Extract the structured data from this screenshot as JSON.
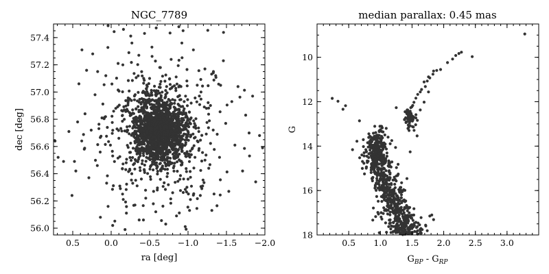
{
  "chart_data": [
    {
      "type": "scatter",
      "title": "NGC_7789",
      "xlabel": "ra [deg]",
      "ylabel": "dec [deg]",
      "xlim": [
        0.75,
        -2.0
      ],
      "ylim": [
        55.95,
        57.5
      ],
      "xticks": [
        0.5,
        0.0,
        -0.5,
        -1.0,
        -1.5,
        -2.0
      ],
      "xtick_labels": [
        "0.5",
        "0.0",
        "−0.5",
        "−1.0",
        "−1.5",
        "−2.0"
      ],
      "yticks": [
        56.0,
        56.2,
        56.4,
        56.6,
        56.8,
        57.0,
        57.2,
        57.4
      ],
      "ytick_labels": [
        "56.0",
        "56.2",
        "56.4",
        "56.6",
        "56.8",
        "57.0",
        "57.2",
        "57.4"
      ],
      "grid": false,
      "color": "#333333",
      "points": [
        {
          "x": 0.73,
          "y": 56.64
        },
        {
          "x": 0.69,
          "y": 56.52
        },
        {
          "x": 0.62,
          "y": 56.49
        },
        {
          "x": 0.55,
          "y": 56.71
        },
        {
          "x": 0.51,
          "y": 56.24
        },
        {
          "x": 0.46,
          "y": 56.42
        },
        {
          "x": 0.42,
          "y": 57.06
        },
        {
          "x": 0.38,
          "y": 57.31
        },
        {
          "x": 0.35,
          "y": 56.58
        },
        {
          "x": 0.34,
          "y": 56.84
        },
        {
          "x": 0.32,
          "y": 57.16
        },
        {
          "x": 0.29,
          "y": 56.37
        },
        {
          "x": 0.26,
          "y": 56.72
        },
        {
          "x": 0.24,
          "y": 57.28
        },
        {
          "x": 0.21,
          "y": 56.98
        },
        {
          "x": 0.18,
          "y": 56.46
        },
        {
          "x": 0.14,
          "y": 56.08
        },
        {
          "x": 0.12,
          "y": 56.81
        },
        {
          "x": 0.07,
          "y": 57.12
        },
        {
          "x": 0.04,
          "y": 56.16
        },
        {
          "x": 0.01,
          "y": 56.61
        },
        {
          "x": -0.02,
          "y": 56.02
        },
        {
          "x": -0.06,
          "y": 56.88
        },
        {
          "x": -0.09,
          "y": 57.21
        },
        {
          "x": -0.12,
          "y": 56.29
        },
        {
          "x": -0.16,
          "y": 57.46
        },
        {
          "x": -0.18,
          "y": 55.99
        },
        {
          "x": -0.22,
          "y": 56.92
        },
        {
          "x": -0.27,
          "y": 57.36
        },
        {
          "x": -0.31,
          "y": 56.17
        },
        {
          "x": -0.36,
          "y": 57.27
        },
        {
          "x": -0.42,
          "y": 56.06
        },
        {
          "x": -0.47,
          "y": 57.04
        },
        {
          "x": -0.53,
          "y": 57.33
        },
        {
          "x": -0.58,
          "y": 56.12
        },
        {
          "x": -0.64,
          "y": 57.18
        },
        {
          "x": -0.71,
          "y": 56.03
        },
        {
          "x": -0.78,
          "y": 57.24
        },
        {
          "x": -0.85,
          "y": 56.09
        },
        {
          "x": -0.88,
          "y": 57.48
        },
        {
          "x": -0.92,
          "y": 57.36
        },
        {
          "x": -1.02,
          "y": 56.13
        },
        {
          "x": -1.07,
          "y": 57.31
        },
        {
          "x": -1.12,
          "y": 57.05
        },
        {
          "x": -1.16,
          "y": 56.24
        },
        {
          "x": -1.22,
          "y": 57.17
        },
        {
          "x": -1.27,
          "y": 56.44
        },
        {
          "x": -1.31,
          "y": 56.13
        },
        {
          "x": -1.36,
          "y": 57.12
        },
        {
          "x": -1.41,
          "y": 56.52
        },
        {
          "x": -1.46,
          "y": 57.23
        },
        {
          "x": -1.49,
          "y": 56.77
        },
        {
          "x": -1.53,
          "y": 56.27
        },
        {
          "x": -1.57,
          "y": 56.93
        },
        {
          "x": -1.61,
          "y": 56.61
        },
        {
          "x": -1.65,
          "y": 57.04
        },
        {
          "x": -1.71,
          "y": 56.42
        },
        {
          "x": -1.75,
          "y": 56.83
        },
        {
          "x": -1.8,
          "y": 56.53
        },
        {
          "x": -1.84,
          "y": 56.97
        },
        {
          "x": -1.88,
          "y": 56.34
        },
        {
          "x": -1.93,
          "y": 56.68
        },
        {
          "x": -1.97,
          "y": 56.59
        },
        {
          "x": 0.05,
          "y": 56.74
        },
        {
          "x": -0.02,
          "y": 56.53
        },
        {
          "x": -0.1,
          "y": 56.66
        },
        {
          "x": -0.15,
          "y": 56.86
        },
        {
          "x": -0.19,
          "y": 56.43
        },
        {
          "x": -0.24,
          "y": 56.95
        },
        {
          "x": -0.28,
          "y": 56.33
        },
        {
          "x": -0.33,
          "y": 56.79
        },
        {
          "x": -0.38,
          "y": 56.57
        },
        {
          "x": -0.95,
          "y": 56.93
        },
        {
          "x": -1.0,
          "y": 56.36
        },
        {
          "x": -1.04,
          "y": 56.81
        },
        {
          "x": -1.09,
          "y": 56.52
        },
        {
          "x": -1.14,
          "y": 56.71
        },
        {
          "x": -1.19,
          "y": 56.31
        },
        {
          "x": -1.24,
          "y": 56.88
        },
        {
          "x": -0.5,
          "y": 57.1
        },
        {
          "x": -0.7,
          "y": 57.08
        },
        {
          "x": -0.6,
          "y": 56.28
        },
        {
          "x": -0.8,
          "y": 56.26
        },
        {
          "x": -0.45,
          "y": 56.22
        },
        {
          "x": -0.62,
          "y": 56.71
        },
        {
          "x": -0.55,
          "y": 56.76
        },
        {
          "x": -0.68,
          "y": 56.64
        },
        {
          "x": -0.58,
          "y": 56.6
        },
        {
          "x": -0.73,
          "y": 56.78
        },
        {
          "x": -0.5,
          "y": 56.67
        },
        {
          "x": -0.66,
          "y": 56.84
        },
        {
          "x": -0.61,
          "y": 56.55
        },
        {
          "x": -0.76,
          "y": 56.69
        },
        {
          "x": -0.52,
          "y": 56.81
        },
        {
          "x": -0.7,
          "y": 56.58
        },
        {
          "x": -0.63,
          "y": 56.75
        },
        {
          "x": -0.57,
          "y": 56.7
        },
        {
          "x": -0.8,
          "y": 56.62
        },
        {
          "x": -0.45,
          "y": 56.73
        },
        {
          "x": -0.67,
          "y": 56.9
        },
        {
          "x": -0.59,
          "y": 56.48
        },
        {
          "x": -0.83,
          "y": 56.83
        },
        {
          "x": -0.42,
          "y": 56.62
        },
        {
          "x": -0.72,
          "y": 56.5
        },
        {
          "x": -0.54,
          "y": 56.89
        }
      ]
    },
    {
      "type": "scatter",
      "title": "median parallax: 0.45 mas",
      "xlabel_main": "G",
      "xlabel_sub1": "BP",
      "xlabel_mid": " - G",
      "xlabel_sub2": "RP",
      "ylabel": "G",
      "xlim": [
        0.0,
        3.5
      ],
      "ylim": [
        18.0,
        8.5
      ],
      "xticks": [
        0.5,
        1.0,
        1.5,
        2.0,
        2.5,
        3.0
      ],
      "xtick_labels": [
        "0.5",
        "1.0",
        "1.5",
        "2.0",
        "2.5",
        "3.0"
      ],
      "yticks": [
        10,
        12,
        14,
        16,
        18
      ],
      "ytick_labels": [
        "10",
        "12",
        "14",
        "16",
        "18"
      ],
      "grid": false,
      "color": "#333333",
      "points": [
        {
          "x": 3.28,
          "y": 8.95
        },
        {
          "x": 2.45,
          "y": 9.97
        },
        {
          "x": 2.28,
          "y": 9.77
        },
        {
          "x": 2.24,
          "y": 9.83
        },
        {
          "x": 2.19,
          "y": 9.92
        },
        {
          "x": 2.14,
          "y": 10.08
        },
        {
          "x": 2.06,
          "y": 10.24
        },
        {
          "x": 1.95,
          "y": 10.55
        },
        {
          "x": 1.89,
          "y": 10.59
        },
        {
          "x": 1.84,
          "y": 10.62
        },
        {
          "x": 1.83,
          "y": 10.76
        },
        {
          "x": 1.78,
          "y": 10.93
        },
        {
          "x": 1.76,
          "y": 10.88
        },
        {
          "x": 1.74,
          "y": 11.07
        },
        {
          "x": 1.71,
          "y": 11.32
        },
        {
          "x": 1.69,
          "y": 11.11
        },
        {
          "x": 1.65,
          "y": 11.45
        },
        {
          "x": 1.63,
          "y": 11.56
        },
        {
          "x": 1.59,
          "y": 11.67
        },
        {
          "x": 1.56,
          "y": 11.84
        },
        {
          "x": 1.53,
          "y": 12.03
        },
        {
          "x": 1.51,
          "y": 12.17
        },
        {
          "x": 1.49,
          "y": 12.62
        },
        {
          "x": 1.47,
          "y": 12.43
        },
        {
          "x": 1.45,
          "y": 12.58
        },
        {
          "x": 1.42,
          "y": 12.55
        },
        {
          "x": 1.4,
          "y": 12.72
        },
        {
          "x": 1.38,
          "y": 12.81
        },
        {
          "x": 1.41,
          "y": 12.91
        },
        {
          "x": 1.46,
          "y": 12.95
        },
        {
          "x": 1.5,
          "y": 12.86
        },
        {
          "x": 1.53,
          "y": 12.7
        },
        {
          "x": 1.44,
          "y": 13.05
        },
        {
          "x": 1.43,
          "y": 12.37
        },
        {
          "x": 1.48,
          "y": 12.27
        },
        {
          "x": 1.39,
          "y": 12.45
        },
        {
          "x": 1.52,
          "y": 13.14
        },
        {
          "x": 1.58,
          "y": 13.54
        },
        {
          "x": 1.69,
          "y": 12.02
        },
        {
          "x": 1.76,
          "y": 11.56
        },
        {
          "x": 1.63,
          "y": 12.37
        },
        {
          "x": 1.25,
          "y": 12.27
        },
        {
          "x": 0.67,
          "y": 12.86
        },
        {
          "x": 0.45,
          "y": 12.18
        },
        {
          "x": 0.41,
          "y": 12.34
        },
        {
          "x": 0.24,
          "y": 11.85
        },
        {
          "x": 0.33,
          "y": 11.98
        },
        {
          "x": 0.56,
          "y": 14.16
        },
        {
          "x": 0.63,
          "y": 13.78
        },
        {
          "x": 0.73,
          "y": 13.71
        },
        {
          "x": 0.77,
          "y": 14.16
        },
        {
          "x": 0.89,
          "y": 13.42
        },
        {
          "x": 1.02,
          "y": 13.11
        },
        {
          "x": 1.18,
          "y": 13.75
        },
        {
          "x": 1.24,
          "y": 14.06
        },
        {
          "x": 1.47,
          "y": 14.26
        },
        {
          "x": 1.78,
          "y": 17.15
        },
        {
          "x": 1.84,
          "y": 17.31
        },
        {
          "x": 1.35,
          "y": 16.03
        },
        {
          "x": 0.88,
          "y": 17.33
        },
        {
          "x": 0.97,
          "y": 17.06
        },
        {
          "x": 1.66,
          "y": 17.76
        },
        {
          "x": 1.56,
          "y": 17.43
        },
        {
          "x": 1.42,
          "y": 15.46
        },
        {
          "x": 1.28,
          "y": 14.82
        },
        {
          "x": 0.94,
          "y": 14.62
        }
      ],
      "sequence": [
        {
          "y": 13.3,
          "x": 0.97,
          "spread": 0.07,
          "n": 10
        },
        {
          "y": 13.7,
          "x": 0.95,
          "spread": 0.1,
          "n": 20
        },
        {
          "y": 14.1,
          "x": 0.94,
          "spread": 0.12,
          "n": 34
        },
        {
          "y": 14.5,
          "x": 0.95,
          "spread": 0.12,
          "n": 46
        },
        {
          "y": 14.9,
          "x": 0.98,
          "spread": 0.11,
          "n": 50
        },
        {
          "y": 15.3,
          "x": 1.02,
          "spread": 0.11,
          "n": 54
        },
        {
          "y": 15.7,
          "x": 1.08,
          "spread": 0.11,
          "n": 58
        },
        {
          "y": 16.1,
          "x": 1.14,
          "spread": 0.11,
          "n": 62
        },
        {
          "y": 16.5,
          "x": 1.2,
          "spread": 0.12,
          "n": 66
        },
        {
          "y": 16.9,
          "x": 1.26,
          "spread": 0.12,
          "n": 70
        },
        {
          "y": 17.3,
          "x": 1.32,
          "spread": 0.13,
          "n": 74
        },
        {
          "y": 17.7,
          "x": 1.38,
          "spread": 0.14,
          "n": 78
        },
        {
          "y": 18.0,
          "x": 1.42,
          "spread": 0.14,
          "n": 40
        }
      ],
      "core": {
        "x": 0.94,
        "y": 14.3,
        "spread_x": 0.05,
        "spread_y": 0.7,
        "n": 120
      }
    }
  ]
}
